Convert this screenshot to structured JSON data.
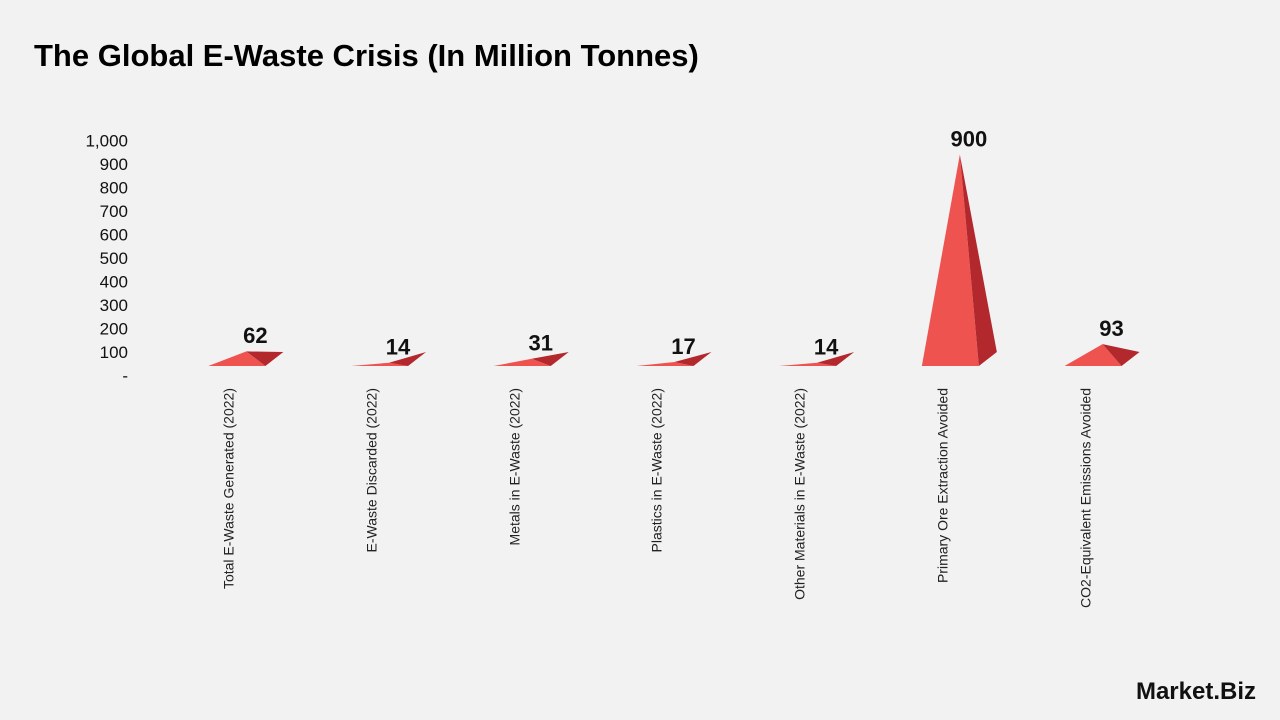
{
  "chart_data": {
    "type": "pyramid",
    "title": "The Global E-Waste Crisis (In Million Tonnes)",
    "categories": [
      "Total E-Waste Generated (2022)",
      "E-Waste Discarded (2022)",
      "Metals in E-Waste (2022)",
      "Plastics in E-Waste (2022)",
      "Other Materials in E-Waste (2022)",
      "Primary Ore Extraction Avoided",
      "CO2-Equivalent Emissions Avoided"
    ],
    "values": [
      62,
      14,
      31,
      17,
      14,
      900,
      93
    ],
    "color": "#ef5350",
    "ylim": [
      0,
      1000
    ],
    "yticks": [
      {
        "value": 0,
        "label": "-"
      },
      100,
      200,
      300,
      400,
      500,
      600,
      700,
      800,
      900,
      {
        "value": 1000,
        "label": "1,000"
      }
    ],
    "grid": false
  },
  "brand": "Market.Biz"
}
